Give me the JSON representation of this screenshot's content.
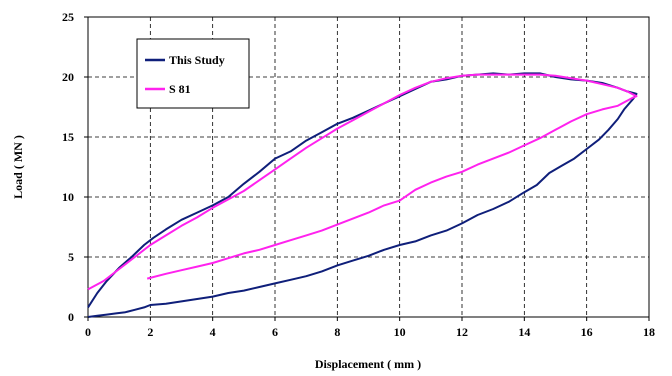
{
  "chart_data": {
    "type": "line",
    "title": "",
    "xlabel": "Displacement ( mm )",
    "ylabel": "Load ( MN )",
    "xlim": [
      0,
      18
    ],
    "ylim": [
      0,
      25
    ],
    "xticks": [
      0,
      2,
      4,
      6,
      8,
      10,
      12,
      14,
      16,
      18
    ],
    "yticks": [
      0,
      5,
      10,
      15,
      20,
      25
    ],
    "grid": true,
    "legend_position": "top-left",
    "series": [
      {
        "name": "This Study",
        "color": "#0f1f7a",
        "x": [
          0.0,
          0.3,
          0.6,
          1.0,
          1.4,
          1.8,
          2.1,
          2.5,
          3.0,
          3.5,
          4.0,
          4.5,
          5.0,
          5.5,
          6.0,
          6.5,
          7.0,
          7.5,
          8.0,
          8.5,
          9.0,
          9.5,
          10.0,
          10.5,
          11.0,
          11.5,
          12.0,
          12.5,
          13.0,
          13.5,
          14.0,
          14.5,
          15.0,
          15.5,
          16.0,
          16.5,
          17.0,
          17.3,
          17.6,
          17.5,
          17.2,
          17.0,
          16.7,
          16.4,
          16.0,
          15.6,
          15.2,
          14.8,
          14.4,
          14.0,
          13.5,
          13.0,
          12.5,
          12.0,
          11.5,
          11.0,
          10.5,
          10.0,
          9.5,
          9.0,
          8.5,
          8.0,
          7.5,
          7.0,
          6.5,
          6.0,
          5.5,
          5.0,
          4.5,
          4.0,
          3.5,
          3.0,
          2.5,
          2.0,
          1.8,
          1.5,
          1.2,
          0.9,
          0.6,
          0.3,
          0.0
        ],
        "y": [
          0.8,
          2.0,
          3.0,
          4.1,
          5.0,
          6.0,
          6.6,
          7.3,
          8.1,
          8.7,
          9.3,
          10.0,
          11.1,
          12.1,
          13.2,
          13.8,
          14.7,
          15.4,
          16.1,
          16.6,
          17.2,
          17.8,
          18.4,
          19.0,
          19.6,
          19.8,
          20.1,
          20.2,
          20.3,
          20.2,
          20.3,
          20.3,
          20.0,
          19.8,
          19.7,
          19.5,
          19.1,
          18.8,
          18.6,
          18.2,
          17.3,
          16.5,
          15.6,
          14.8,
          14.0,
          13.2,
          12.6,
          12.0,
          11.0,
          10.4,
          9.6,
          9.0,
          8.5,
          7.8,
          7.2,
          6.8,
          6.3,
          6.0,
          5.6,
          5.1,
          4.7,
          4.3,
          3.8,
          3.4,
          3.1,
          2.8,
          2.5,
          2.2,
          2.0,
          1.7,
          1.5,
          1.3,
          1.1,
          1.0,
          0.8,
          0.6,
          0.4,
          0.3,
          0.2,
          0.1,
          0.0
        ]
      },
      {
        "name": "S 81",
        "color": "#ff22ee",
        "x": [
          0.0,
          0.5,
          1.0,
          1.5,
          2.0,
          2.5,
          3.0,
          3.5,
          4.0,
          4.5,
          5.0,
          5.5,
          6.0,
          6.5,
          7.0,
          7.5,
          8.0,
          8.5,
          9.0,
          9.5,
          10.0,
          10.5,
          11.0,
          11.5,
          12.0,
          12.5,
          13.0,
          13.5,
          14.0,
          14.5,
          15.0,
          15.5,
          16.0,
          16.5,
          17.0,
          17.3,
          17.6,
          17.5,
          17.0,
          16.5,
          16.0,
          15.5,
          15.0,
          14.5,
          14.0,
          13.5,
          13.0,
          12.5,
          12.0,
          11.5,
          11.0,
          10.5,
          10.0,
          9.5,
          9.0,
          8.5,
          8.0,
          7.5,
          7.0,
          6.5,
          6.0,
          5.5,
          5.0,
          4.5,
          4.0,
          3.5,
          3.0,
          2.5,
          1.9
        ],
        "y": [
          2.3,
          3.0,
          4.0,
          5.0,
          6.0,
          6.8,
          7.6,
          8.3,
          9.1,
          9.8,
          10.5,
          11.4,
          12.3,
          13.2,
          14.1,
          14.9,
          15.7,
          16.4,
          17.1,
          17.8,
          18.5,
          19.1,
          19.6,
          19.9,
          20.1,
          20.2,
          20.2,
          20.2,
          20.2,
          20.2,
          20.1,
          19.9,
          19.7,
          19.4,
          19.1,
          18.8,
          18.4,
          18.3,
          17.6,
          17.3,
          16.9,
          16.3,
          15.6,
          14.9,
          14.3,
          13.7,
          13.2,
          12.7,
          12.1,
          11.7,
          11.2,
          10.6,
          9.7,
          9.3,
          8.7,
          8.2,
          7.7,
          7.2,
          6.8,
          6.4,
          6.0,
          5.6,
          5.3,
          4.9,
          4.5,
          4.2,
          3.9,
          3.6,
          3.2
        ]
      }
    ]
  }
}
